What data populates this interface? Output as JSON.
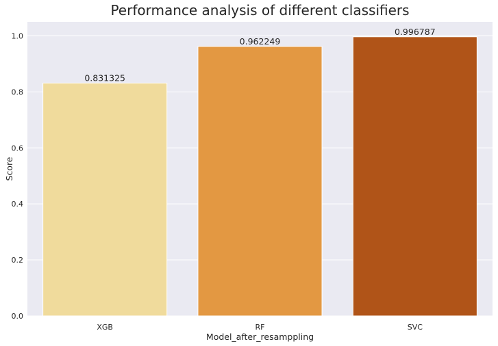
{
  "chart_data": {
    "type": "bar",
    "title": "Performance analysis of different classifiers",
    "xlabel": "Model_after_resamppling",
    "ylabel": "Score",
    "categories": [
      "XGB",
      "RF",
      "SVC"
    ],
    "values": [
      0.831325,
      0.962249,
      0.996787
    ],
    "data_labels": [
      "0.831325",
      "0.962249",
      "0.996787"
    ],
    "colors": [
      "#f0db9c",
      "#e39842",
      "#b05418"
    ],
    "ylim": [
      0,
      1.05
    ],
    "yticks": [
      0.0,
      0.2,
      0.4,
      0.6,
      0.8,
      1.0
    ],
    "ytick_labels": [
      "0.0",
      "0.2",
      "0.4",
      "0.6",
      "0.8",
      "1.0"
    ],
    "grid": true,
    "background_color": "#eaeaf2",
    "legend": "none"
  }
}
